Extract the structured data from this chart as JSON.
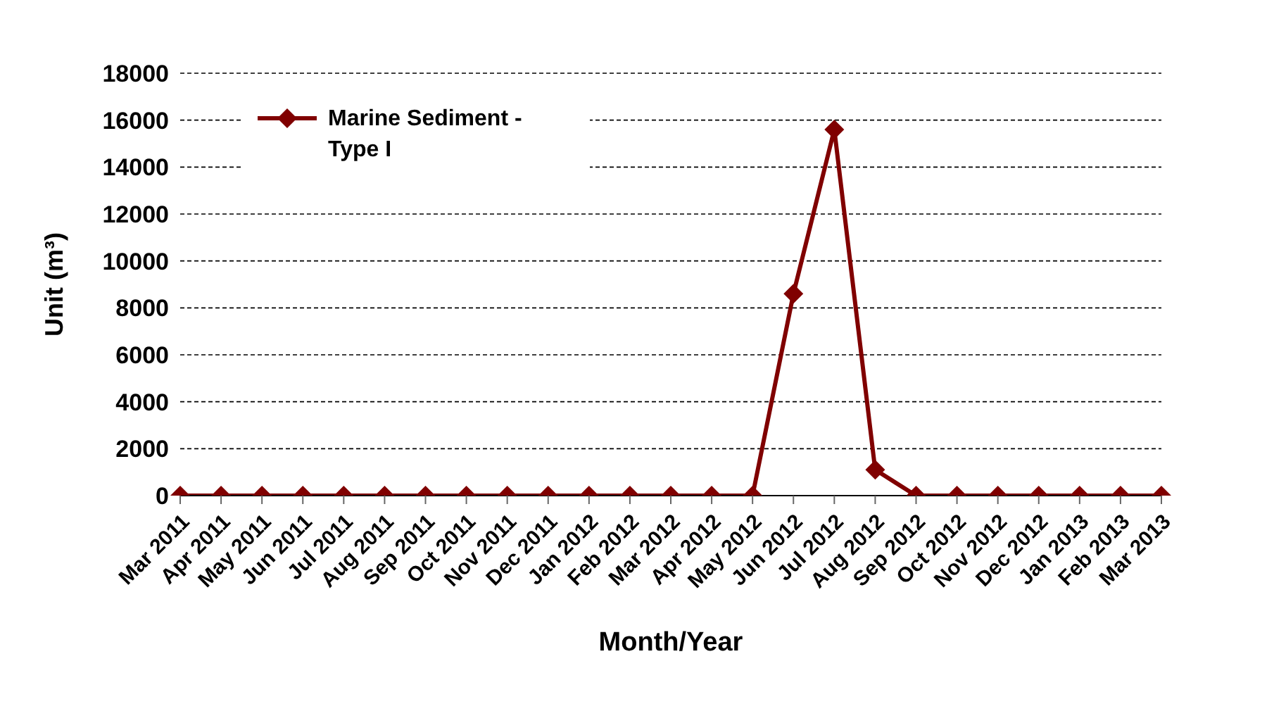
{
  "chart_data": {
    "type": "line",
    "xlabel": "Month/Year",
    "ylabel": "Unit (m³)",
    "categories": [
      "Mar 2011",
      "Apr 2011",
      "May 2011",
      "Jun 2011",
      "Jul 2011",
      "Aug 2011",
      "Sep 2011",
      "Oct 2011",
      "Nov 2011",
      "Dec 2011",
      "Jan 2012",
      "Feb 2012",
      "Mar 2012",
      "Apr 2012",
      "May 2012",
      "Jun 2012",
      "Jul 2012",
      "Aug 2012",
      "Sep 2012",
      "Oct 2012",
      "Nov 2012",
      "Dec 2012",
      "Jan 2013",
      "Feb 2013",
      "Mar 2013"
    ],
    "series": [
      {
        "name": "Marine Sediment - Type I",
        "color": "#800000",
        "values": [
          0,
          0,
          0,
          0,
          0,
          0,
          0,
          0,
          0,
          0,
          0,
          0,
          0,
          0,
          0,
          8600,
          15600,
          1100,
          0,
          0,
          0,
          0,
          0,
          0,
          0
        ]
      }
    ],
    "ylim": [
      0,
      18000
    ],
    "yticks": [
      0,
      2000,
      4000,
      6000,
      8000,
      10000,
      12000,
      14000,
      16000,
      18000
    ],
    "grid": "y",
    "legend": "top left",
    "marker": "diamond",
    "line_style": "solid"
  }
}
